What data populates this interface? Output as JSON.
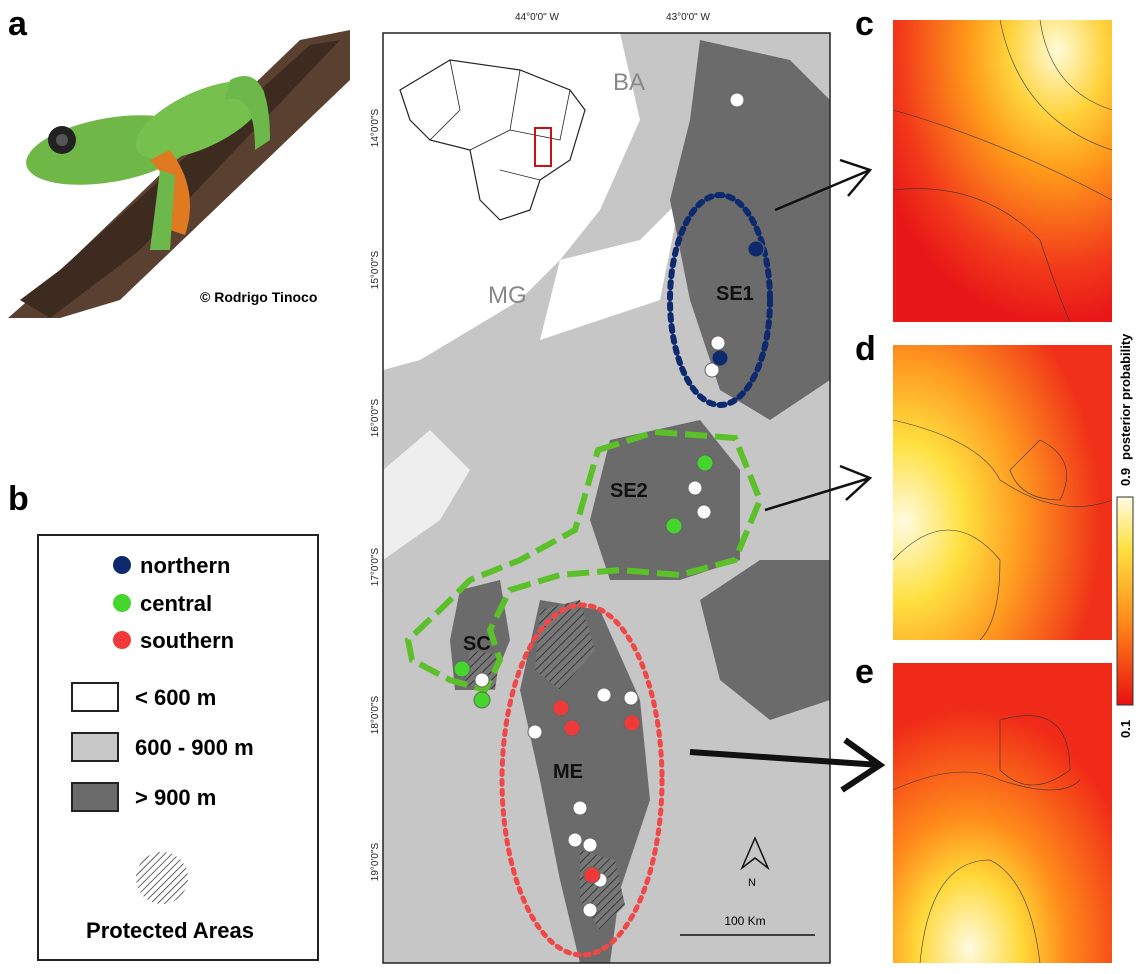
{
  "panels": {
    "a": "a",
    "b": "b",
    "c": "c",
    "d": "d",
    "e": "e"
  },
  "photo_credit": "© Rodrigo Tinoco",
  "legend": {
    "groups": [
      "northern",
      "central",
      "southern"
    ],
    "elevation": [
      "< 600 m",
      "600 - 900 m",
      "> 900 m"
    ],
    "protected": "Protected Areas"
  },
  "map": {
    "longitudes": [
      "44°0'0\" W",
      "43°0'0\" W"
    ],
    "latitudes": [
      "14°0'0\"S",
      "15°0'0\"S",
      "16°0'0\"S",
      "17°0'0\"S",
      "18°0'0\"S",
      "19°0'0\"S"
    ],
    "states": [
      "BA",
      "MG"
    ],
    "regions": [
      "SE1",
      "SE2",
      "SC",
      "ME"
    ],
    "north": "N",
    "scale": "100 Km"
  },
  "colorbar": {
    "max_label": "0.9",
    "title": "posterior probability",
    "min_label": "0.1"
  }
}
